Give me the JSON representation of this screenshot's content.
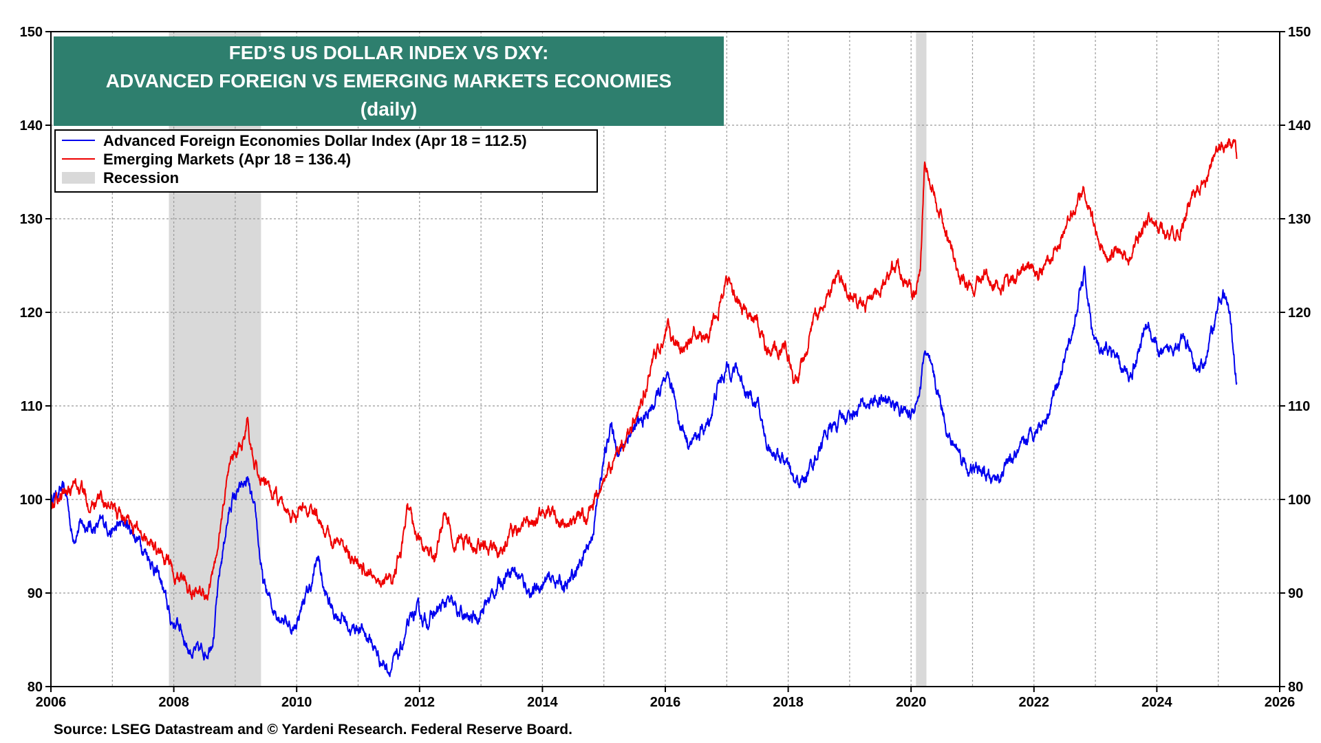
{
  "chart_data": {
    "type": "line",
    "title_lines": [
      "FED’S US DOLLAR INDEX VS DXY:",
      "ADVANCED FOREIGN VS EMERGING MARKETS ECONOMIES",
      "(daily)"
    ],
    "source": "Source: LSEG Datastream and © Yardeni Research. Federal Reserve Board.",
    "xlim": [
      2006,
      2026
    ],
    "ylim": [
      80,
      150
    ],
    "x_ticks": [
      "2006",
      "2008",
      "2010",
      "2012",
      "2014",
      "2016",
      "2018",
      "2020",
      "2022",
      "2024",
      "2026"
    ],
    "y_ticks": [
      "80",
      "90",
      "100",
      "110",
      "120",
      "130",
      "140",
      "150"
    ],
    "grid": true,
    "legend_position": "top-left",
    "recessions": [
      {
        "start": 2007.92,
        "end": 2009.42
      },
      {
        "start": 2020.08,
        "end": 2020.25
      }
    ],
    "recession_label": "Recession",
    "series": [
      {
        "name": "Advanced Foreign Economies Dollar Index (Apr 18 = 112.5)",
        "color": "#0000ee",
        "points": [
          [
            2006.0,
            100
          ],
          [
            2006.15,
            101
          ],
          [
            2006.25,
            100.5
          ],
          [
            2006.35,
            96
          ],
          [
            2006.5,
            97.5
          ],
          [
            2006.7,
            97
          ],
          [
            2006.9,
            97.5
          ],
          [
            2007.0,
            96.5
          ],
          [
            2007.2,
            97.5
          ],
          [
            2007.4,
            96
          ],
          [
            2007.6,
            94
          ],
          [
            2007.8,
            91
          ],
          [
            2007.95,
            87
          ],
          [
            2008.1,
            86.5
          ],
          [
            2008.25,
            84
          ],
          [
            2008.4,
            83.5
          ],
          [
            2008.55,
            84
          ],
          [
            2008.65,
            86
          ],
          [
            2008.75,
            92
          ],
          [
            2008.85,
            97
          ],
          [
            2008.95,
            100
          ],
          [
            2009.1,
            101
          ],
          [
            2009.2,
            102
          ],
          [
            2009.35,
            97
          ],
          [
            2009.45,
            91
          ],
          [
            2009.6,
            88.5
          ],
          [
            2009.8,
            87.5
          ],
          [
            2009.95,
            86
          ],
          [
            2010.1,
            89
          ],
          [
            2010.25,
            91
          ],
          [
            2010.35,
            94
          ],
          [
            2010.45,
            90
          ],
          [
            2010.6,
            88
          ],
          [
            2010.75,
            87.5
          ],
          [
            2010.9,
            86
          ],
          [
            2011.0,
            86.5
          ],
          [
            2011.2,
            85
          ],
          [
            2011.35,
            83
          ],
          [
            2011.5,
            82
          ],
          [
            2011.65,
            83
          ],
          [
            2011.8,
            86
          ],
          [
            2011.95,
            88
          ],
          [
            2012.1,
            87
          ],
          [
            2012.3,
            88
          ],
          [
            2012.45,
            89
          ],
          [
            2012.6,
            88
          ],
          [
            2012.8,
            87
          ],
          [
            2013.0,
            88
          ],
          [
            2013.2,
            90
          ],
          [
            2013.35,
            91.5
          ],
          [
            2013.5,
            93
          ],
          [
            2013.7,
            91
          ],
          [
            2013.85,
            90
          ],
          [
            2014.0,
            91
          ],
          [
            2014.2,
            91.5
          ],
          [
            2014.4,
            90.5
          ],
          [
            2014.6,
            93
          ],
          [
            2014.8,
            96
          ],
          [
            2014.95,
            102
          ],
          [
            2015.1,
            108
          ],
          [
            2015.25,
            105
          ],
          [
            2015.4,
            107
          ],
          [
            2015.6,
            108
          ],
          [
            2015.8,
            110
          ],
          [
            2015.95,
            112
          ],
          [
            2016.1,
            112
          ],
          [
            2016.25,
            108
          ],
          [
            2016.4,
            106
          ],
          [
            2016.55,
            107
          ],
          [
            2016.7,
            108
          ],
          [
            2016.85,
            112
          ],
          [
            2017.0,
            114
          ],
          [
            2017.15,
            114
          ],
          [
            2017.3,
            112
          ],
          [
            2017.5,
            110
          ],
          [
            2017.65,
            106
          ],
          [
            2017.8,
            105
          ],
          [
            2017.95,
            104
          ],
          [
            2018.1,
            101.5
          ],
          [
            2018.25,
            102
          ],
          [
            2018.4,
            104
          ],
          [
            2018.6,
            107
          ],
          [
            2018.8,
            108
          ],
          [
            2018.95,
            109
          ],
          [
            2019.2,
            110
          ],
          [
            2019.4,
            110.5
          ],
          [
            2019.6,
            110.5
          ],
          [
            2019.8,
            110
          ],
          [
            2020.0,
            109
          ],
          [
            2020.15,
            112
          ],
          [
            2020.22,
            116
          ],
          [
            2020.35,
            113
          ],
          [
            2020.5,
            110
          ],
          [
            2020.65,
            106
          ],
          [
            2020.8,
            105
          ],
          [
            2020.95,
            103
          ],
          [
            2021.1,
            103
          ],
          [
            2021.3,
            102
          ],
          [
            2021.45,
            102.5
          ],
          [
            2021.6,
            104
          ],
          [
            2021.8,
            105
          ],
          [
            2021.95,
            107
          ],
          [
            2022.2,
            109
          ],
          [
            2022.4,
            113
          ],
          [
            2022.6,
            117
          ],
          [
            2022.75,
            122
          ],
          [
            2022.82,
            124
          ],
          [
            2022.95,
            118
          ],
          [
            2023.1,
            115
          ],
          [
            2023.25,
            116
          ],
          [
            2023.4,
            114
          ],
          [
            2023.55,
            113
          ],
          [
            2023.7,
            116
          ],
          [
            2023.85,
            119
          ],
          [
            2024.0,
            116
          ],
          [
            2024.15,
            115
          ],
          [
            2024.3,
            117
          ],
          [
            2024.45,
            117
          ],
          [
            2024.6,
            114
          ],
          [
            2024.75,
            114
          ],
          [
            2024.9,
            118
          ],
          [
            2025.0,
            121
          ],
          [
            2025.1,
            122
          ],
          [
            2025.2,
            119
          ],
          [
            2025.25,
            116
          ],
          [
            2025.3,
            112.5
          ]
        ]
      },
      {
        "name": "Emerging Markets (Apr 18 = 136.4)",
        "color": "#ee0000",
        "points": [
          [
            2006.0,
            100
          ],
          [
            2006.2,
            100.5
          ],
          [
            2006.4,
            101.5
          ],
          [
            2006.6,
            100
          ],
          [
            2006.8,
            100
          ],
          [
            2007.0,
            99
          ],
          [
            2007.2,
            98
          ],
          [
            2007.4,
            97
          ],
          [
            2007.6,
            96
          ],
          [
            2007.8,
            94
          ],
          [
            2008.0,
            92
          ],
          [
            2008.2,
            91
          ],
          [
            2008.4,
            90.5
          ],
          [
            2008.55,
            89.5
          ],
          [
            2008.7,
            94
          ],
          [
            2008.8,
            99
          ],
          [
            2008.9,
            104
          ],
          [
            2009.0,
            105
          ],
          [
            2009.1,
            106
          ],
          [
            2009.2,
            109
          ],
          [
            2009.3,
            103
          ],
          [
            2009.45,
            102
          ],
          [
            2009.6,
            100.5
          ],
          [
            2009.8,
            99
          ],
          [
            2010.0,
            98.5
          ],
          [
            2010.2,
            99
          ],
          [
            2010.35,
            98
          ],
          [
            2010.5,
            96
          ],
          [
            2010.7,
            96
          ],
          [
            2010.85,
            94
          ],
          [
            2011.0,
            93
          ],
          [
            2011.2,
            92
          ],
          [
            2011.4,
            91.5
          ],
          [
            2011.55,
            91
          ],
          [
            2011.7,
            94
          ],
          [
            2011.8,
            99
          ],
          [
            2011.95,
            96
          ],
          [
            2012.1,
            95
          ],
          [
            2012.25,
            94
          ],
          [
            2012.4,
            98
          ],
          [
            2012.55,
            96
          ],
          [
            2012.7,
            95.5
          ],
          [
            2012.85,
            95
          ],
          [
            2013.0,
            95
          ],
          [
            2013.2,
            94.5
          ],
          [
            2013.35,
            94
          ],
          [
            2013.5,
            97
          ],
          [
            2013.7,
            97
          ],
          [
            2013.9,
            98
          ],
          [
            2014.1,
            99
          ],
          [
            2014.3,
            98
          ],
          [
            2014.5,
            97.5
          ],
          [
            2014.7,
            98.5
          ],
          [
            2014.85,
            100
          ],
          [
            2015.0,
            102
          ],
          [
            2015.15,
            104
          ],
          [
            2015.3,
            106
          ],
          [
            2015.45,
            107
          ],
          [
            2015.6,
            110
          ],
          [
            2015.75,
            114
          ],
          [
            2015.9,
            116
          ],
          [
            2016.05,
            119
          ],
          [
            2016.2,
            116
          ],
          [
            2016.35,
            116
          ],
          [
            2016.5,
            118
          ],
          [
            2016.7,
            117
          ],
          [
            2016.85,
            120
          ],
          [
            2017.0,
            124
          ],
          [
            2017.15,
            121
          ],
          [
            2017.3,
            120
          ],
          [
            2017.5,
            119
          ],
          [
            2017.65,
            116
          ],
          [
            2017.8,
            116
          ],
          [
            2017.95,
            116
          ],
          [
            2018.1,
            113
          ],
          [
            2018.2,
            114
          ],
          [
            2018.4,
            119
          ],
          [
            2018.6,
            121
          ],
          [
            2018.8,
            124
          ],
          [
            2018.95,
            123
          ],
          [
            2019.15,
            121
          ],
          [
            2019.35,
            121
          ],
          [
            2019.55,
            123
          ],
          [
            2019.75,
            125
          ],
          [
            2019.95,
            123
          ],
          [
            2020.05,
            122
          ],
          [
            2020.15,
            124
          ],
          [
            2020.22,
            136
          ],
          [
            2020.3,
            135
          ],
          [
            2020.45,
            131
          ],
          [
            2020.6,
            128
          ],
          [
            2020.8,
            124
          ],
          [
            2020.95,
            123
          ],
          [
            2021.1,
            123
          ],
          [
            2021.3,
            124
          ],
          [
            2021.5,
            123
          ],
          [
            2021.7,
            124
          ],
          [
            2021.9,
            125
          ],
          [
            2022.1,
            124
          ],
          [
            2022.3,
            126
          ],
          [
            2022.5,
            129
          ],
          [
            2022.7,
            131
          ],
          [
            2022.82,
            133
          ],
          [
            2022.95,
            130
          ],
          [
            2023.1,
            128
          ],
          [
            2023.25,
            126
          ],
          [
            2023.4,
            127
          ],
          [
            2023.55,
            126
          ],
          [
            2023.7,
            128
          ],
          [
            2023.85,
            130
          ],
          [
            2024.0,
            129
          ],
          [
            2024.2,
            128
          ],
          [
            2024.35,
            128
          ],
          [
            2024.5,
            131
          ],
          [
            2024.65,
            133
          ],
          [
            2024.8,
            134
          ],
          [
            2024.95,
            136
          ],
          [
            2025.05,
            138
          ],
          [
            2025.15,
            138
          ],
          [
            2025.22,
            137
          ],
          [
            2025.28,
            139
          ],
          [
            2025.3,
            136.4
          ]
        ]
      }
    ]
  }
}
